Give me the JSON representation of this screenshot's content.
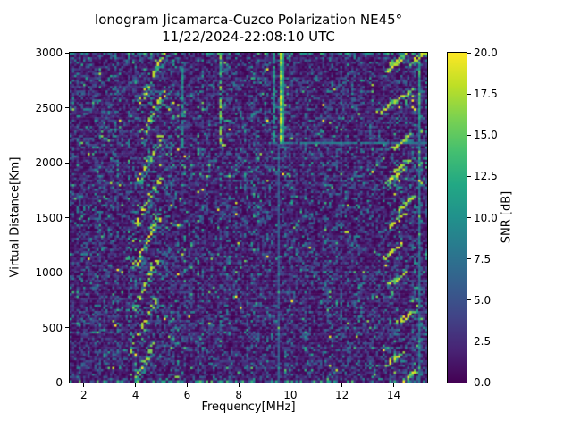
{
  "title": {
    "line1": "Ionogram Jicamarca-Cuzco Polarization NE45°",
    "line2": "11/22/2024-22:08:10 UTC"
  },
  "chart_data": {
    "type": "heatmap",
    "title": "Ionogram Jicamarca-Cuzco Polarization NE45° 11/22/2024-22:08:10 UTC",
    "xlabel": "Frequency[MHz]",
    "ylabel": "Virtual Distance[Km]",
    "xlim": [
      1.45,
      15.3
    ],
    "ylim": [
      0,
      3000
    ],
    "xticks": [
      2,
      4,
      6,
      8,
      10,
      12,
      14
    ],
    "yticks": [
      0,
      500,
      1000,
      1500,
      2000,
      2500,
      3000
    ],
    "grid": {
      "cols": 160,
      "rows": 148
    },
    "seed": 20241122,
    "colorbar": {
      "label": "SNR [dB]",
      "min": 0,
      "max": 20,
      "ticks": [
        0.0,
        2.5,
        5.0,
        7.5,
        10.0,
        12.5,
        15.0,
        17.5,
        20.0
      ],
      "colormap": "viridis",
      "stops": [
        [
          0.0,
          "#440154"
        ],
        [
          0.1,
          "#482475"
        ],
        [
          0.2,
          "#414487"
        ],
        [
          0.3,
          "#355f8d"
        ],
        [
          0.4,
          "#2a788e"
        ],
        [
          0.5,
          "#21918c"
        ],
        [
          0.6,
          "#22a884"
        ],
        [
          0.7,
          "#44bf70"
        ],
        [
          0.8,
          "#7ad151"
        ],
        [
          0.9,
          "#bddf26"
        ],
        [
          1.0,
          "#fde725"
        ]
      ]
    },
    "noise": {
      "scale": 3.0,
      "background_db": 0,
      "speckle_max_db": 20
    },
    "features": {
      "oblique_traces": {
        "comment": "repeating multi-hop oblique echo traces near 4-5 MHz",
        "count": 8,
        "f_start": 3.8,
        "f_drift": 0.06,
        "f_span": 0.95,
        "d_start": -80,
        "d_spacing": 378,
        "d_span": 460,
        "duty": 0.6,
        "v_min": 9,
        "v_max": 20
      },
      "rfi_vertical_lines": [
        {
          "f": 3.2,
          "d0": 2150,
          "d1": 3000,
          "v": 8,
          "vr": 3,
          "duty": 0.4,
          "w": 1
        },
        {
          "f": 4.65,
          "d0": 2350,
          "d1": 3000,
          "v": 8,
          "vr": 3,
          "duty": 0.3,
          "w": 1
        },
        {
          "f": 5.8,
          "d0": 2140,
          "d1": 3000,
          "v": 9,
          "vr": 3,
          "duty": 0.75,
          "w": 1
        },
        {
          "f": 7.32,
          "d0": 2170,
          "d1": 3000,
          "v": 13,
          "vr": 5,
          "duty": 0.75,
          "w": 1,
          "end_bright": true
        },
        {
          "f": 9.33,
          "d0": 2170,
          "d1": 3000,
          "v": 10,
          "vr": 3,
          "duty": 0.8,
          "w": 1
        },
        {
          "f": 9.62,
          "d0": 2170,
          "d1": 3000,
          "v": 16,
          "vr": 4,
          "duty": 1.0,
          "w": 2
        },
        {
          "f": 9.55,
          "d0": 0,
          "d1": 2170,
          "v": 5.5,
          "vr": 1,
          "duty": 1.0,
          "w": 1
        },
        {
          "f": 12.0,
          "d0": 0,
          "d1": 3000,
          "v": 5,
          "vr": 2,
          "duty": 0.35,
          "w": 1
        },
        {
          "f": 14.97,
          "d0": 0,
          "d1": 3000,
          "v": 7.5,
          "vr": 2,
          "duty": 1.0,
          "w": 1
        },
        {
          "f": 14.97,
          "d0": 2400,
          "d1": 3000,
          "v": 12,
          "vr": 4,
          "duty": 0.9,
          "w": 1
        }
      ],
      "horizontal_line": {
        "d": 2185,
        "f0": 9.4,
        "f1": 15.3,
        "v": 8,
        "duty": 0.9
      },
      "right_blobs": {
        "comment": "bright slanted echo patches near 14-15 MHz",
        "f_half_span": 0.33,
        "d_half_span": 60,
        "v_min": 13,
        "v_max": 20,
        "centers": [
          [
            14.2,
            2950
          ],
          [
            15.05,
            2960
          ],
          [
            14.0,
            2870
          ],
          [
            14.35,
            2600
          ],
          [
            13.75,
            2505
          ],
          [
            14.3,
            2185
          ],
          [
            14.35,
            1980
          ],
          [
            14.05,
            1865
          ],
          [
            14.5,
            1635
          ],
          [
            14.15,
            1480
          ],
          [
            13.95,
            1190
          ],
          [
            14.15,
            945
          ],
          [
            14.45,
            590
          ],
          [
            14.05,
            215
          ],
          [
            14.6,
            60
          ]
        ]
      },
      "edge_rows": {
        "duty": 0.32,
        "v_min": 7,
        "v_max": 15
      }
    }
  }
}
